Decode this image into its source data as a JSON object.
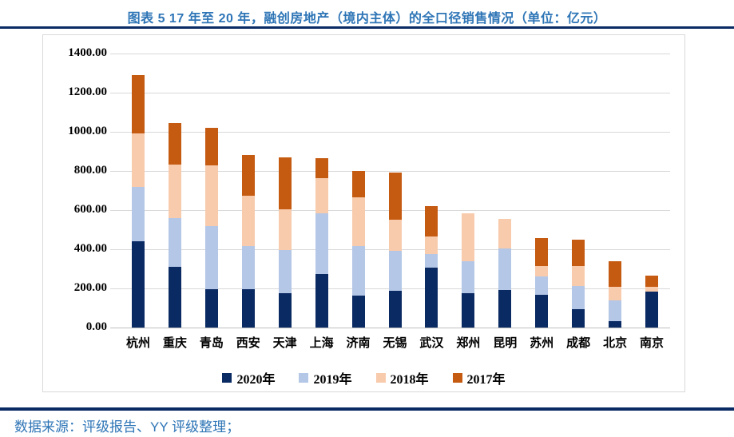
{
  "header": {
    "title": "图表 5 17 年至 20 年，融创房地产（境内主体）的全口径销售情况（单位：亿元）",
    "title_color": "#2E75B6",
    "rule_color": "#0A2A63"
  },
  "chart_data": {
    "type": "bar",
    "stacked": true,
    "title": "图表 5 17 年至 20 年，融创房地产（境内主体）的全口径销售情况（单位：亿元）",
    "unit": "亿元",
    "categories": [
      "杭州",
      "重庆",
      "青岛",
      "西安",
      "天津",
      "上海",
      "济南",
      "无锡",
      "武汉",
      "郑州",
      "昆明",
      "苏州",
      "成都",
      "北京",
      "南京"
    ],
    "series": [
      {
        "name": "2020年",
        "color": "#0A2A63",
        "values": [
          440,
          310,
          197,
          197,
          174,
          275,
          163,
          188,
          306,
          177,
          193,
          167,
          93,
          34,
          184
        ]
      },
      {
        "name": "2019年",
        "color": "#B4C7E7",
        "values": [
          278,
          248,
          323,
          218,
          223,
          307,
          252,
          204,
          68,
          161,
          211,
          94,
          118,
          105,
          0
        ]
      },
      {
        "name": "2018年",
        "color": "#F8CBAD",
        "values": [
          272,
          276,
          310,
          258,
          208,
          180,
          251,
          159,
          91,
          247,
          150,
          55,
          105,
          68,
          24
        ]
      },
      {
        "name": "2017年",
        "color": "#C55A11",
        "values": [
          298,
          210,
          190,
          207,
          265,
          104,
          133,
          241,
          157,
          0,
          0,
          142,
          133,
          133,
          57
        ]
      }
    ],
    "totals": [
      1288,
      1044,
      1020,
      880,
      870,
      866,
      799,
      792,
      622,
      585,
      554,
      458,
      449,
      340,
      265
    ],
    "xlabel": "",
    "ylabel": "",
    "ylim": [
      0,
      1400
    ],
    "ytick_step": 200,
    "ytick_labels": [
      "0.00",
      "200.00",
      "400.00",
      "600.00",
      "800.00",
      "1000.00",
      "1200.00",
      "1400.00"
    ],
    "grid": "horizontal",
    "legend_position": "bottom"
  },
  "footer": {
    "source": "数据来源：评级报告、YY 评级整理；"
  }
}
